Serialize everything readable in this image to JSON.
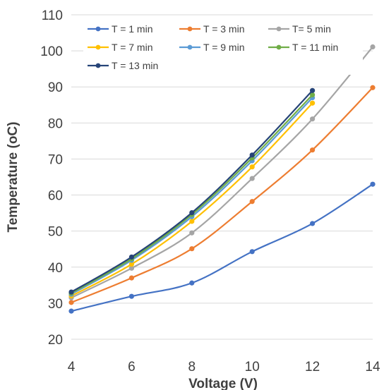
{
  "chart_data": {
    "type": "line",
    "title": "",
    "xlabel": "Voltage (V)",
    "ylabel": "Temperature (oC)",
    "xlim": [
      4,
      14
    ],
    "ylim": [
      20,
      110
    ],
    "xticks": [
      4,
      6,
      8,
      10,
      12,
      14
    ],
    "yticks": [
      20,
      30,
      40,
      50,
      60,
      70,
      80,
      90,
      100,
      110
    ],
    "x_tick_labels": [
      "4",
      "6",
      "8",
      "10",
      "12",
      "14"
    ],
    "y_tick_labels": [
      "20",
      "30",
      "40",
      "50",
      "60",
      "70",
      "80",
      "90",
      "100",
      "110"
    ],
    "grid": {
      "horizontal": true,
      "vertical": false
    },
    "legend_position": "top-inside",
    "series": [
      {
        "name": "T = 1 min",
        "color": "#4472C4",
        "x": [
          4,
          6,
          8,
          10,
          12,
          14
        ],
        "y": [
          27.8,
          31.9,
          35.6,
          44.3,
          52.1,
          63.0
        ]
      },
      {
        "name": "T = 3 min",
        "color": "#ED7D31",
        "x": [
          4,
          6,
          8,
          10,
          12,
          14
        ],
        "y": [
          30.2,
          37.0,
          45.1,
          58.2,
          72.5,
          89.8
        ]
      },
      {
        "name": "T= 5 min",
        "color": "#A5A5A5",
        "x": [
          4,
          6,
          8,
          10,
          12,
          14
        ],
        "y": [
          31.5,
          39.7,
          49.5,
          64.6,
          81.1,
          101.1
        ]
      },
      {
        "name": "T = 7 min",
        "color": "#FFC000",
        "x": [
          4,
          6,
          8,
          10,
          12
        ],
        "y": [
          32.0,
          40.8,
          52.7,
          67.8,
          85.5
        ]
      },
      {
        "name": "T = 9 min",
        "color": "#5B9BD5",
        "x": [
          4,
          6,
          8,
          10,
          12
        ],
        "y": [
          32.5,
          41.9,
          54.0,
          69.5,
          87.0
        ]
      },
      {
        "name": "T = 11 min",
        "color": "#70AD47",
        "x": [
          4,
          6,
          8,
          10,
          12
        ],
        "y": [
          32.8,
          42.3,
          54.6,
          70.3,
          87.8
        ]
      },
      {
        "name": "T = 13 min",
        "color": "#264478",
        "x": [
          4,
          6,
          8,
          10,
          12
        ],
        "y": [
          33.1,
          42.8,
          55.1,
          71.1,
          89.0
        ]
      }
    ]
  }
}
